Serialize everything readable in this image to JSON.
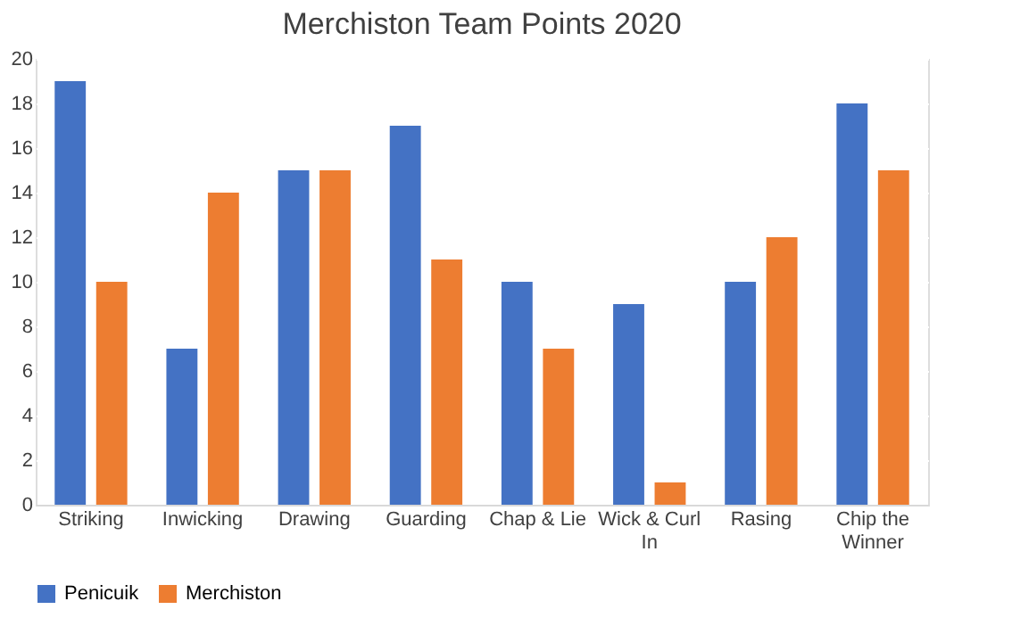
{
  "chart_data": {
    "type": "bar",
    "title": "Merchiston Team Points 2020",
    "categories": [
      "Striking",
      "Inwicking",
      "Drawing",
      "Guarding",
      "Chap & Lie",
      "Wick & Curl In",
      "Rasing",
      "Chip the Winner"
    ],
    "series": [
      {
        "name": "Penicuik",
        "color": "#4472c4",
        "values": [
          19,
          7,
          15,
          17,
          10,
          9,
          10,
          18
        ]
      },
      {
        "name": "Merchiston",
        "color": "#ed7d31",
        "values": [
          10,
          14,
          15,
          11,
          7,
          1,
          12,
          15
        ]
      }
    ],
    "ylim": [
      0,
      20
    ],
    "yticks": [
      0,
      2,
      4,
      6,
      8,
      10,
      12,
      14,
      16,
      18,
      20
    ],
    "grid": "y",
    "legend": "bottom"
  }
}
